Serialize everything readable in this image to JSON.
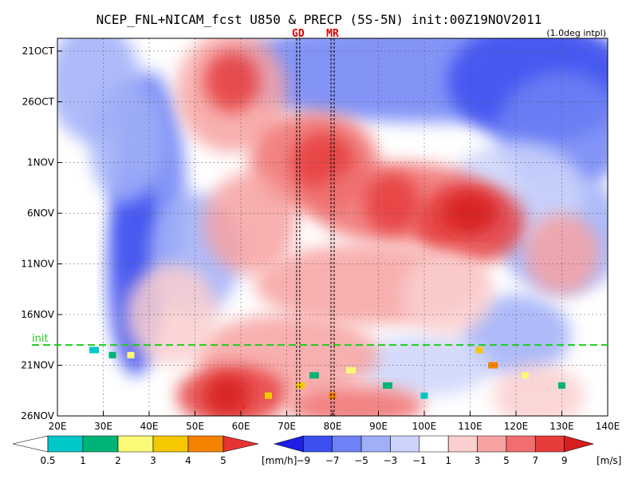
{
  "chart_data": {
    "type": "heatmap",
    "title": "NCEP_FNL+NICAM_fcst U850 & PRECP (5S-5N) init:00Z19NOV2011",
    "note": "(1.0deg intpl)",
    "x_ticks": [
      "20E",
      "30E",
      "40E",
      "50E",
      "60E",
      "70E",
      "80E",
      "90E",
      "100E",
      "110E",
      "120E",
      "130E",
      "140E"
    ],
    "x_range": [
      "20E",
      "140E"
    ],
    "y_ticks": [
      "21OCT",
      "26OCT",
      "1NOV",
      "6NOV",
      "11NOV",
      "16NOV",
      "21NOV",
      "26NOV"
    ],
    "y_range": [
      "21OCT",
      "26NOV"
    ],
    "markers": [
      {
        "label": "GD",
        "lon": 72.5
      },
      {
        "label": "MR",
        "lon": 80
      }
    ],
    "init_line": {
      "label": "init",
      "date": "19NOV"
    },
    "wind_field": {
      "variable": "U850",
      "units": "[m/s]",
      "levels": [
        -9,
        -7,
        -5,
        -3,
        -1,
        1,
        3,
        5,
        7,
        9
      ],
      "colors": [
        "#1e1ee6",
        "#3c50f0",
        "#6e82f5",
        "#a0aff8",
        "#ccd4fb",
        "#ffffff",
        "#fbcfcf",
        "#f7a2a2",
        "#f06e6e",
        "#e63c3c",
        "#d71e1e"
      ]
    },
    "precip_field": {
      "variable": "PRECP",
      "units": "[mm/h]",
      "levels": [
        0.5,
        1,
        2,
        3,
        4,
        5
      ],
      "colors": [
        "#ffffff",
        "#00c8c8",
        "#00b478",
        "#fafa78",
        "#f5c800",
        "#f58200",
        "#e63232"
      ]
    }
  }
}
